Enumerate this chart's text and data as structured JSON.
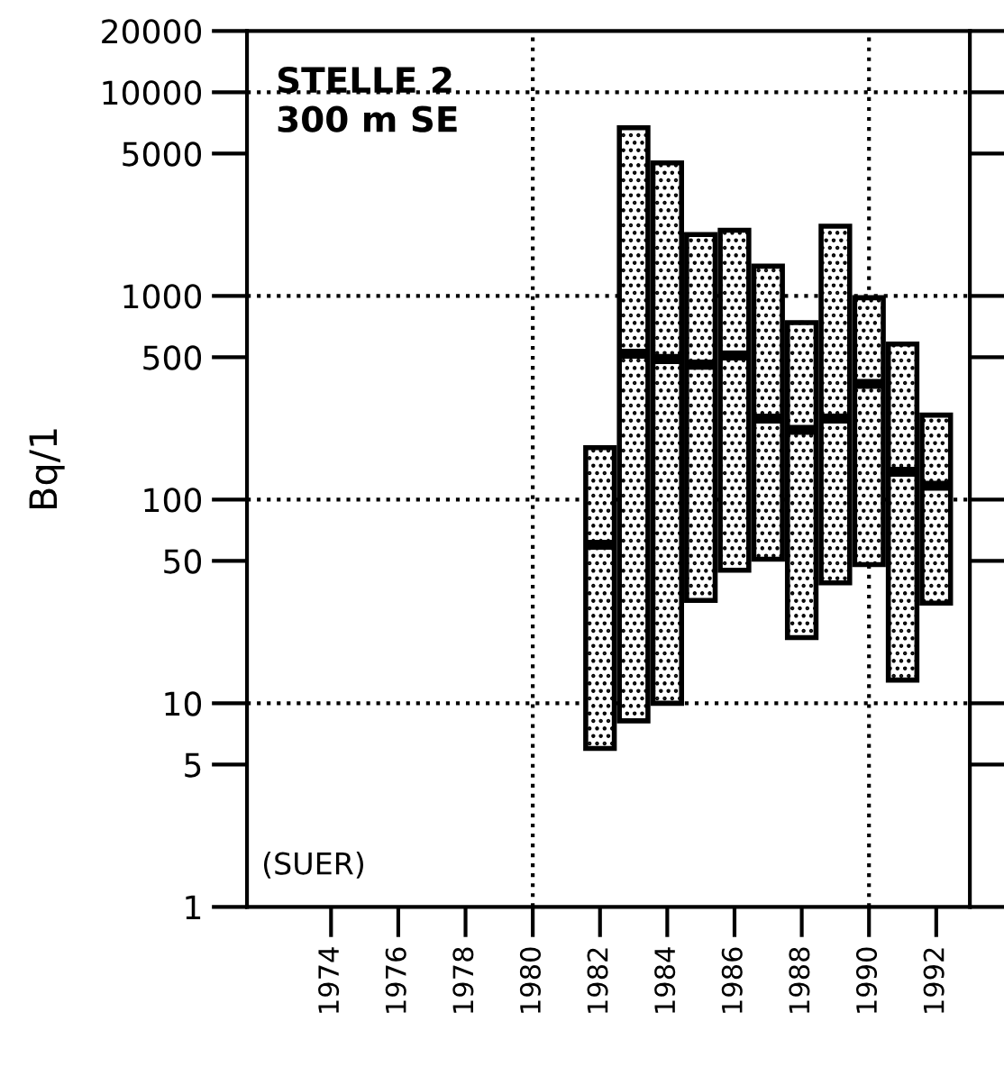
{
  "chart_data": {
    "type": "box",
    "ylabel": "Bq/1",
    "annotations": [
      "STELLE 2\n300 m SE",
      "(SUER)"
    ],
    "x": [
      1982,
      1983,
      1984,
      1985,
      1986,
      1987,
      1988,
      1989,
      1990,
      1991,
      1992
    ],
    "color": "#000000",
    "boxes": [
      {
        "low": 6,
        "q1": 6,
        "median": 60,
        "q3": 180,
        "high": 180
      },
      {
        "low": 8.2,
        "q1": 8.2,
        "median": 520,
        "q3": 6700,
        "high": 6700
      },
      {
        "low": 10,
        "q1": 10,
        "median": 490,
        "q3": 4500,
        "high": 4500
      },
      {
        "low": 32,
        "q1": 32,
        "median": 460,
        "q3": 2000,
        "high": 2000
      },
      {
        "low": 45,
        "q1": 45,
        "median": 510,
        "q3": 2100,
        "high": 2100
      },
      {
        "low": 51,
        "q1": 51,
        "median": 250,
        "q3": 1400,
        "high": 1400
      },
      {
        "low": 21,
        "q1": 21,
        "median": 220,
        "q3": 740,
        "high": 740
      },
      {
        "low": 39,
        "q1": 39,
        "median": 250,
        "q3": 2200,
        "high": 2200
      },
      {
        "low": 48,
        "q1": 48,
        "median": 370,
        "q3": 980,
        "high": 980
      },
      {
        "low": 13,
        "q1": 13,
        "median": 137,
        "q3": 580,
        "high": 580
      },
      {
        "low": 31,
        "q1": 31,
        "median": 117,
        "q3": 260,
        "high": 260
      }
    ],
    "log": "y",
    "ylim": [
      1,
      20000
    ],
    "yticks": [
      1,
      5,
      10,
      50,
      100,
      500,
      1000,
      5000,
      10000,
      20000
    ],
    "xlim": [
      1971.5,
      1993
    ],
    "xticks": [
      1974,
      1976,
      1978,
      1980,
      1982,
      1984,
      1986,
      1988,
      1990,
      1992
    ],
    "ref_lines": [
      {
        "axis": "y",
        "value": 10,
        "line_style": "dotted"
      },
      {
        "axis": "y",
        "value": 100,
        "line_style": "dotted"
      },
      {
        "axis": "y",
        "value": 1000,
        "line_style": "dotted"
      },
      {
        "axis": "y",
        "value": 10000,
        "line_style": "dotted"
      },
      {
        "axis": "x",
        "value": 1980,
        "line_style": "dotted"
      },
      {
        "axis": "x",
        "value": 1990,
        "line_style": "dotted"
      }
    ],
    "grid": false,
    "legend": false
  }
}
